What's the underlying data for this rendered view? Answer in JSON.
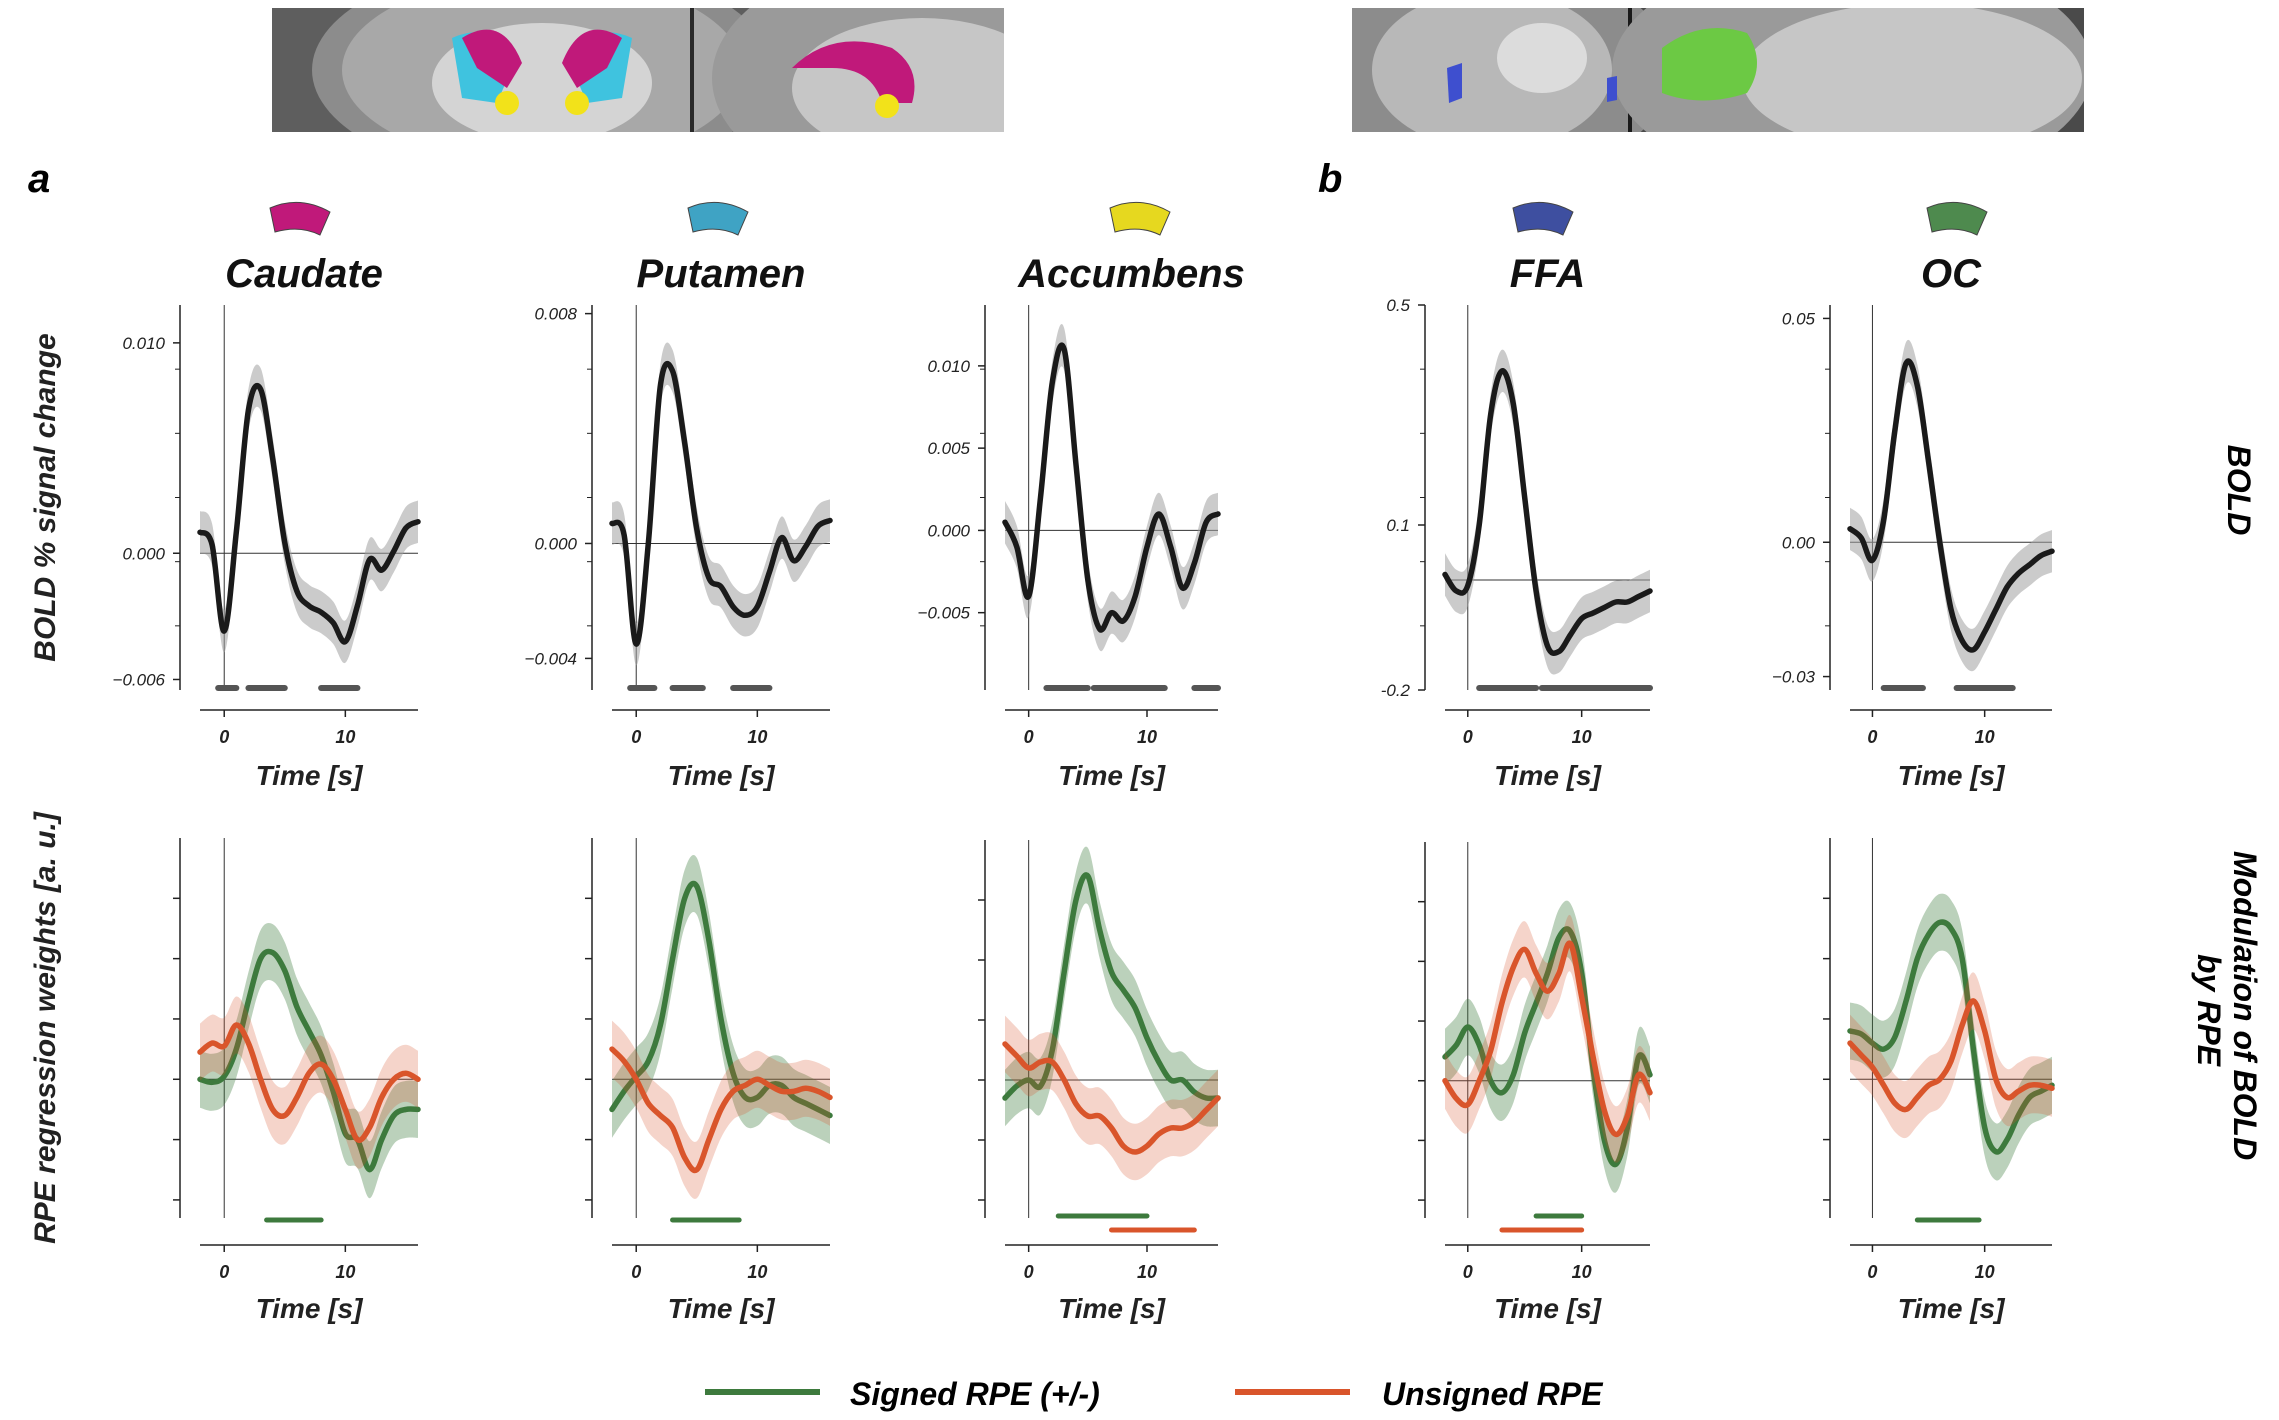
{
  "panel_labels": [
    "a",
    "b"
  ],
  "legend": [
    {
      "label": "Signed RPE (+/-)",
      "color": "#3d7a3d"
    },
    {
      "label": "Unsigned RPE",
      "color": "#d9552b"
    }
  ],
  "row_labels": {
    "bold": "BOLD",
    "modulation": "Modulation of BOLD by RPE"
  },
  "roi_colors": {
    "Caudate": "#c0197a",
    "Putamen": "#3fa3c4",
    "Accumbens": "#e6d81f",
    "FFA": "#3e4fa0",
    "OC": "#4e8a4e"
  },
  "chart_data": [
    {
      "type": "line",
      "row": "BOLD",
      "title": "Caudate",
      "xlabel": "Time [s]",
      "ylabel": "BOLD % signal change",
      "xlim": [
        -2,
        16
      ],
      "ylim": [
        -0.0065,
        0.0118
      ],
      "xticks": [
        0,
        10
      ],
      "yticks": [
        -0.006,
        0.0,
        0.01
      ],
      "ytick_labels": [
        "−0.006",
        "0.000",
        "0.010"
      ],
      "series": [
        {
          "color": "#1a1a1a",
          "x": [
            -2,
            -1,
            0,
            1,
            2,
            3,
            4,
            5,
            6,
            7,
            8,
            9,
            10,
            11,
            12,
            13,
            14,
            15,
            16
          ],
          "y": [
            0.001,
            0.0004,
            -0.0037,
            0.001,
            0.0068,
            0.0078,
            0.0045,
            0.0005,
            -0.0018,
            -0.0025,
            -0.0028,
            -0.0033,
            -0.0042,
            -0.0025,
            -0.0003,
            -0.0008,
            0.0001,
            0.0012,
            0.0015
          ]
        }
      ],
      "significance": [
        [
          -0.5,
          1
        ],
        [
          2,
          5
        ],
        [
          8,
          11
        ]
      ]
    },
    {
      "type": "line",
      "row": "BOLD",
      "title": "Putamen",
      "xlabel": "Time [s]",
      "ylabel": "",
      "xlim": [
        -2,
        16
      ],
      "ylim": [
        -0.0051,
        0.0083
      ],
      "xticks": [
        0,
        10
      ],
      "yticks": [
        -0.004,
        0.0,
        0.008
      ],
      "ytick_labels": [
        "−0.004",
        "0.000",
        "0.008"
      ],
      "series": [
        {
          "color": "#1a1a1a",
          "x": [
            -2,
            -1,
            0,
            1,
            2,
            3,
            4,
            5,
            6,
            7,
            8,
            9,
            10,
            11,
            12,
            13,
            14,
            15,
            16
          ],
          "y": [
            0.0007,
            0.0003,
            -0.0035,
            0.0,
            0.0055,
            0.006,
            0.0035,
            0.0005,
            -0.0012,
            -0.0015,
            -0.0022,
            -0.0025,
            -0.0022,
            -0.001,
            0.0002,
            -0.0006,
            -0.0001,
            0.0006,
            0.0008
          ]
        }
      ],
      "significance": [
        [
          -0.5,
          1.5
        ],
        [
          3,
          5.5
        ],
        [
          8,
          11
        ]
      ]
    },
    {
      "type": "line",
      "row": "BOLD",
      "title": "Accumbens",
      "xlabel": "Time [s]",
      "ylabel": "",
      "xlim": [
        -2,
        16
      ],
      "ylim": [
        -0.0097,
        0.0137
      ],
      "xticks": [
        0,
        10
      ],
      "yticks": [
        -0.005,
        0.0,
        0.005,
        0.01
      ],
      "ytick_labels": [
        "−0.005",
        "0.000",
        "0.005",
        "0.010"
      ],
      "series": [
        {
          "color": "#1a1a1a",
          "x": [
            -2,
            -1,
            0,
            1,
            2,
            3,
            4,
            5,
            6,
            7,
            8,
            9,
            10,
            11,
            12,
            13,
            14,
            15,
            16
          ],
          "y": [
            0.0005,
            -0.001,
            -0.004,
            0.002,
            0.009,
            0.011,
            0.004,
            -0.003,
            -0.006,
            -0.005,
            -0.0055,
            -0.004,
            -0.001,
            0.001,
            -0.001,
            -0.0035,
            -0.002,
            0.0005,
            0.001
          ]
        }
      ],
      "significance": [
        [
          1.5,
          5
        ],
        [
          5.5,
          11.5
        ],
        [
          14,
          16
        ]
      ]
    },
    {
      "type": "line",
      "row": "BOLD",
      "title": "FFA",
      "xlabel": "Time [s]",
      "ylabel": "",
      "xlim": [
        -2,
        16
      ],
      "ylim": [
        -0.2,
        0.5
      ],
      "xticks": [
        0,
        10
      ],
      "yticks": [
        -0.2,
        0.1,
        0.5
      ],
      "ytick_labels": [
        "-0.2",
        "0.1",
        "0.5"
      ],
      "series": [
        {
          "color": "#1a1a1a",
          "x": [
            -2,
            -1,
            0,
            1,
            2,
            3,
            4,
            5,
            6,
            7,
            8,
            9,
            10,
            11,
            12,
            13,
            14,
            15,
            16
          ],
          "y": [
            0.01,
            -0.02,
            -0.01,
            0.1,
            0.3,
            0.38,
            0.32,
            0.15,
            -0.02,
            -0.12,
            -0.13,
            -0.1,
            -0.07,
            -0.06,
            -0.05,
            -0.04,
            -0.04,
            -0.03,
            -0.02
          ]
        }
      ],
      "significance": [
        [
          1,
          6
        ],
        [
          6.5,
          16
        ]
      ]
    },
    {
      "type": "line",
      "row": "BOLD",
      "title": "OC",
      "xlabel": "Time [s]",
      "ylabel": "",
      "xlim": [
        -2,
        16
      ],
      "ylim": [
        -0.033,
        0.053
      ],
      "xticks": [
        0,
        10
      ],
      "yticks": [
        -0.03,
        0.0,
        0.05
      ],
      "ytick_labels": [
        "−0.03",
        "0.00",
        "0.05"
      ],
      "series": [
        {
          "color": "#1a1a1a",
          "x": [
            -2,
            -1,
            0,
            1,
            2,
            3,
            4,
            5,
            6,
            7,
            8,
            9,
            10,
            11,
            12,
            13,
            14,
            15,
            16
          ],
          "y": [
            0.003,
            0.001,
            -0.004,
            0.005,
            0.025,
            0.04,
            0.035,
            0.018,
            0.0,
            -0.015,
            -0.022,
            -0.024,
            -0.02,
            -0.015,
            -0.01,
            -0.007,
            -0.005,
            -0.003,
            -0.002
          ]
        }
      ],
      "significance": [
        [
          1,
          4.5
        ],
        [
          7.5,
          12.5
        ]
      ]
    },
    {
      "type": "line",
      "row": "Modulation of BOLD by RPE",
      "title": "Caudate",
      "xlabel": "Time [s]",
      "ylabel": "RPE regression weights [a. u.]",
      "xlim": [
        -2,
        16
      ],
      "ylim": [
        -2.3,
        4.0
      ],
      "xticks": [
        0,
        10
      ],
      "yticks": [
        -2,
        -1,
        0,
        1,
        2,
        3
      ],
      "ytick_labels": [
        "",
        "",
        "",
        "",
        "",
        ""
      ],
      "zero": 0,
      "series": [
        {
          "name": "Signed RPE (+/-)",
          "color": "#3d7a3d",
          "x": [
            -2,
            -1,
            0,
            1,
            2,
            3,
            4,
            5,
            6,
            7,
            8,
            9,
            10,
            11,
            12,
            13,
            14,
            15,
            16
          ],
          "y": [
            0.0,
            -0.05,
            0.05,
            0.5,
            1.3,
            2.0,
            2.1,
            1.8,
            1.2,
            0.8,
            0.4,
            -0.2,
            -0.9,
            -1.0,
            -1.5,
            -1.0,
            -0.6,
            -0.5,
            -0.5
          ]
        },
        {
          "name": "Unsigned RPE",
          "color": "#d9552b",
          "x": [
            -2,
            -1,
            0,
            1,
            2,
            3,
            4,
            5,
            6,
            7,
            8,
            9,
            10,
            11,
            12,
            13,
            14,
            15,
            16
          ],
          "y": [
            0.45,
            0.6,
            0.55,
            0.9,
            0.6,
            0.0,
            -0.5,
            -0.6,
            -0.3,
            0.1,
            0.25,
            0.0,
            -0.5,
            -1.0,
            -0.8,
            -0.3,
            0.0,
            0.1,
            0.0
          ]
        }
      ],
      "significance": [
        {
          "series": "Signed RPE (+/-)",
          "range": [
            3.5,
            8
          ]
        }
      ]
    },
    {
      "type": "line",
      "row": "Modulation of BOLD by RPE",
      "title": "Putamen",
      "xlabel": "Time [s]",
      "ylabel": "",
      "xlim": [
        -2,
        16
      ],
      "ylim": [
        -2.3,
        4.0
      ],
      "xticks": [
        0,
        10
      ],
      "yticks": [
        -2,
        -1,
        0,
        1,
        2,
        3
      ],
      "ytick_labels": [
        "",
        "",
        "",
        "",
        "",
        ""
      ],
      "zero": 0,
      "series": [
        {
          "name": "Signed RPE (+/-)",
          "color": "#3d7a3d",
          "x": [
            -2,
            -1,
            0,
            1,
            2,
            3,
            4,
            5,
            6,
            7,
            8,
            9,
            10,
            11,
            12,
            13,
            14,
            15,
            16
          ],
          "y": [
            -0.5,
            -0.2,
            0.05,
            0.3,
            0.9,
            2.0,
            3.0,
            3.2,
            2.3,
            1.0,
            0.1,
            -0.3,
            -0.3,
            -0.1,
            -0.1,
            -0.3,
            -0.4,
            -0.5,
            -0.6
          ]
        },
        {
          "name": "Unsigned RPE",
          "color": "#d9552b",
          "x": [
            -2,
            -1,
            0,
            1,
            2,
            3,
            4,
            5,
            6,
            7,
            8,
            9,
            10,
            11,
            12,
            13,
            14,
            15,
            16
          ],
          "y": [
            0.5,
            0.3,
            0.0,
            -0.4,
            -0.6,
            -0.8,
            -1.3,
            -1.5,
            -1.0,
            -0.5,
            -0.2,
            -0.1,
            0.0,
            -0.1,
            -0.2,
            -0.2,
            -0.15,
            -0.2,
            -0.3
          ]
        }
      ],
      "significance": [
        {
          "series": "Signed RPE (+/-)",
          "range": [
            3,
            8.5
          ]
        }
      ]
    },
    {
      "type": "line",
      "row": "Modulation of BOLD by RPE",
      "title": "Accumbens",
      "xlabel": "Time [s]",
      "ylabel": "",
      "xlim": [
        -2,
        16
      ],
      "ylim": [
        -2.3,
        4.0
      ],
      "xticks": [
        0,
        10
      ],
      "yticks": [
        -2,
        -1,
        0,
        1,
        2,
        3
      ],
      "ytick_labels": [
        "",
        "",
        "",
        "",
        "",
        ""
      ],
      "zero": 0,
      "series": [
        {
          "name": "Signed RPE (+/-)",
          "color": "#3d7a3d",
          "x": [
            -2,
            -1,
            0,
            1,
            2,
            3,
            4,
            5,
            6,
            7,
            8,
            9,
            10,
            11,
            12,
            13,
            14,
            15,
            16
          ],
          "y": [
            -0.3,
            -0.1,
            0.0,
            -0.1,
            0.5,
            1.8,
            3.0,
            3.4,
            2.5,
            1.8,
            1.5,
            1.2,
            0.7,
            0.3,
            0.0,
            0.0,
            -0.2,
            -0.3,
            -0.3
          ]
        },
        {
          "name": "Unsigned RPE",
          "color": "#d9552b",
          "x": [
            -2,
            -1,
            0,
            1,
            2,
            3,
            4,
            5,
            6,
            7,
            8,
            9,
            10,
            11,
            12,
            13,
            14,
            15,
            16
          ],
          "y": [
            0.6,
            0.4,
            0.2,
            0.3,
            0.3,
            0.0,
            -0.4,
            -0.6,
            -0.6,
            -0.8,
            -1.1,
            -1.2,
            -1.1,
            -0.9,
            -0.8,
            -0.8,
            -0.7,
            -0.5,
            -0.3
          ]
        }
      ],
      "significance": [
        {
          "series": "Signed RPE (+/-)",
          "range": [
            2.5,
            10
          ]
        },
        {
          "series": "Unsigned RPE",
          "range": [
            7,
            14
          ]
        }
      ]
    },
    {
      "type": "line",
      "row": "Modulation of BOLD by RPE",
      "title": "FFA",
      "xlabel": "Time [s]",
      "ylabel": "",
      "xlim": [
        -2,
        16
      ],
      "ylim": [
        -2.3,
        4.0
      ],
      "xticks": [
        0,
        10
      ],
      "yticks": [
        -2,
        -1,
        0,
        1,
        2,
        3
      ],
      "ytick_labels": [
        "",
        "",
        "",
        "",
        "",
        ""
      ],
      "zero": 0,
      "series": [
        {
          "name": "Signed RPE (+/-)",
          "color": "#3d7a3d",
          "x": [
            -2,
            -1,
            0,
            1,
            2,
            3,
            4,
            5,
            6,
            7,
            8,
            9,
            10,
            11,
            12,
            13,
            14,
            15,
            16
          ],
          "y": [
            0.4,
            0.6,
            0.9,
            0.6,
            0.0,
            -0.2,
            0.1,
            0.8,
            1.3,
            1.8,
            2.4,
            2.5,
            1.8,
            0.2,
            -1.0,
            -1.4,
            -0.8,
            0.4,
            0.1
          ]
        },
        {
          "name": "Unsigned RPE",
          "color": "#d9552b",
          "x": [
            -2,
            -1,
            0,
            1,
            2,
            3,
            4,
            5,
            6,
            7,
            8,
            9,
            10,
            11,
            12,
            13,
            14,
            15,
            16
          ],
          "y": [
            0.0,
            -0.3,
            -0.4,
            0.0,
            0.5,
            1.3,
            1.9,
            2.2,
            1.8,
            1.5,
            1.8,
            2.3,
            1.4,
            0.4,
            -0.5,
            -0.9,
            -0.6,
            0.1,
            -0.2
          ]
        }
      ],
      "significance": [
        {
          "series": "Signed RPE (+/-)",
          "range": [
            6,
            10
          ]
        },
        {
          "series": "Unsigned RPE",
          "range": [
            3,
            10
          ]
        }
      ]
    },
    {
      "type": "line",
      "row": "Modulation of BOLD by RPE",
      "title": "OC",
      "xlabel": "Time [s]",
      "ylabel": "",
      "xlim": [
        -2,
        16
      ],
      "ylim": [
        -2.3,
        4.0
      ],
      "xticks": [
        0,
        10
      ],
      "yticks": [
        -2,
        -1,
        0,
        1,
        2,
        3
      ],
      "ytick_labels": [
        "",
        "",
        "",
        "",
        "",
        ""
      ],
      "zero": 0,
      "series": [
        {
          "name": "Signed RPE (+/-)",
          "color": "#3d7a3d",
          "x": [
            -2,
            -1,
            0,
            1,
            2,
            3,
            4,
            5,
            6,
            7,
            8,
            9,
            10,
            11,
            12,
            13,
            14,
            15,
            16
          ],
          "y": [
            0.8,
            0.75,
            0.6,
            0.5,
            0.7,
            1.3,
            2.0,
            2.4,
            2.6,
            2.5,
            2.0,
            0.5,
            -0.8,
            -1.2,
            -1.0,
            -0.6,
            -0.3,
            -0.2,
            -0.1
          ]
        },
        {
          "name": "Unsigned RPE",
          "color": "#d9552b",
          "x": [
            -2,
            -1,
            0,
            1,
            2,
            3,
            4,
            5,
            6,
            7,
            8,
            9,
            10,
            11,
            12,
            13,
            14,
            15,
            16
          ],
          "y": [
            0.6,
            0.4,
            0.2,
            -0.1,
            -0.4,
            -0.5,
            -0.3,
            -0.1,
            0.0,
            0.3,
            0.9,
            1.3,
            0.8,
            0.0,
            -0.3,
            -0.2,
            -0.1,
            -0.1,
            -0.15
          ]
        }
      ],
      "significance": [
        {
          "series": "Signed RPE (+/-)",
          "range": [
            4,
            9.5
          ]
        }
      ]
    }
  ]
}
